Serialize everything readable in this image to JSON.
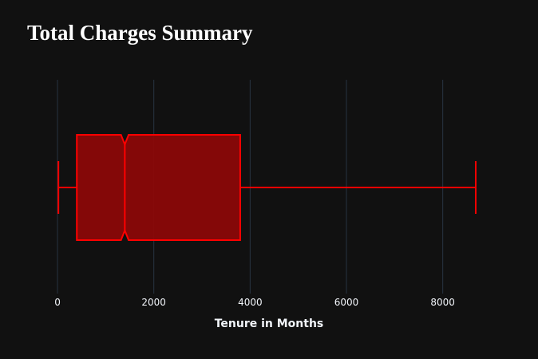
{
  "chart_data": {
    "type": "box",
    "title": "Total Charges Summary",
    "xlabel": "Tenure in Months",
    "ylabel": "",
    "orientation": "horizontal",
    "notched": true,
    "xlim": [
      -100,
      9000
    ],
    "xticks": [
      0,
      2000,
      4000,
      6000,
      8000
    ],
    "grid": true,
    "box": {
      "min": 18.8,
      "q1": 401.4,
      "median": 1397.5,
      "q3": 3794.7,
      "max": 8684.8,
      "notch_low": 1318,
      "notch_high": 1477
    },
    "colors": {
      "background": "#111111",
      "grid": "#283442",
      "box_fill": "#8b0808",
      "box_line": "#ff0000",
      "text": "#f2f5fa",
      "title": "#ffffff"
    }
  }
}
